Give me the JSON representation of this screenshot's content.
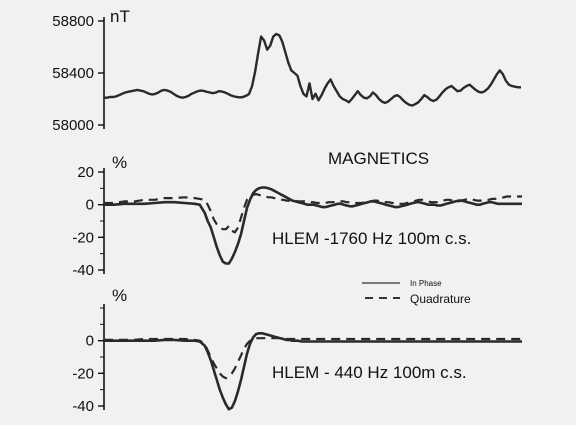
{
  "chart_data": [
    {
      "type": "line",
      "title": "MAGNETICS",
      "ylabel": "nT",
      "ylim": [
        58000,
        58800
      ],
      "yticks": [
        58000,
        58400,
        58800
      ],
      "x": [
        0,
        3,
        6,
        9,
        12,
        15,
        18,
        21,
        24,
        27,
        30,
        33,
        36,
        39,
        42,
        45,
        48,
        51,
        54,
        57,
        60,
        63,
        66,
        69,
        72,
        75,
        78,
        81,
        84,
        87,
        90,
        93,
        96,
        99,
        102,
        105,
        108,
        111,
        114,
        117,
        120,
        123,
        126,
        129,
        132,
        135,
        138,
        141,
        144,
        147,
        150,
        153,
        156,
        159,
        162,
        165,
        168,
        171,
        174,
        177,
        180,
        183,
        186,
        189,
        192,
        195,
        198,
        201,
        204,
        207,
        210,
        213,
        216,
        219,
        222,
        225,
        228,
        231,
        234,
        237,
        240,
        243,
        246,
        249,
        252,
        255,
        258,
        261,
        264,
        267,
        270,
        273,
        276,
        279,
        282,
        285,
        288,
        291,
        294,
        297,
        300,
        303,
        306,
        309,
        312,
        315,
        318,
        321,
        324,
        327,
        330,
        333,
        336,
        339,
        342,
        345,
        348,
        351,
        354,
        357,
        360,
        363,
        366,
        369,
        372,
        375,
        378,
        381,
        384,
        387,
        390,
        393,
        396,
        399,
        402,
        405,
        408,
        411,
        414
      ],
      "series": [
        {
          "values": [
            58210,
            58210,
            58215,
            58215,
            58220,
            58230,
            58240,
            58250,
            58255,
            58260,
            58265,
            58270,
            58265,
            58260,
            58250,
            58240,
            58235,
            58240,
            58250,
            58265,
            58270,
            58265,
            58255,
            58240,
            58225,
            58215,
            58210,
            58215,
            58225,
            58240,
            58250,
            58260,
            58265,
            58262,
            58255,
            58250,
            58245,
            58250,
            58260,
            58258,
            58250,
            58240,
            58228,
            58220,
            58215,
            58212,
            58215,
            58225,
            58238,
            58300,
            58410,
            58550,
            58680,
            58650,
            58580,
            58610,
            58680,
            58700,
            58690,
            58640,
            58560,
            58480,
            58420,
            58400,
            58380,
            58300,
            58240,
            58220,
            58320,
            58200,
            58240,
            58190,
            58230,
            58280,
            58320,
            58350,
            58300,
            58260,
            58220,
            58200,
            58190,
            58175,
            58200,
            58230,
            58260,
            58230,
            58210,
            58205,
            58220,
            58250,
            58230,
            58200,
            58180,
            58170,
            58180,
            58200,
            58220,
            58230,
            58215,
            58190,
            58170,
            58155,
            58150,
            58160,
            58175,
            58200,
            58230,
            58215,
            58195,
            58185,
            58195,
            58220,
            58250,
            58275,
            58290,
            58300,
            58280,
            58260,
            58265,
            58285,
            58300,
            58310,
            58290,
            58270,
            58255,
            58250,
            58260,
            58280,
            58310,
            58350,
            58390,
            58420,
            58390,
            58340,
            58310,
            58300,
            58295,
            58290,
            58290
          ]
        }
      ]
    },
    {
      "type": "line",
      "title": "HLEM -1760 Hz 100m c.s.",
      "ylabel": "%",
      "ylim": [
        -40,
        20
      ],
      "yticks": [
        -40,
        -20,
        0,
        20
      ],
      "x": [
        0,
        10,
        20,
        30,
        40,
        50,
        60,
        70,
        80,
        90,
        95,
        100,
        103,
        106,
        109,
        112,
        115,
        118,
        121,
        124,
        127,
        130,
        133,
        136,
        139,
        142,
        145,
        148,
        151,
        154,
        157,
        160,
        163,
        166,
        169,
        172,
        175,
        178,
        181,
        184,
        187,
        190,
        193,
        196,
        199,
        202,
        205,
        208,
        211,
        214,
        217,
        220,
        223,
        226,
        229,
        232,
        235,
        238,
        241,
        244,
        247,
        250,
        253,
        256,
        259,
        262,
        265,
        268,
        271,
        274,
        277,
        280,
        283,
        286,
        289,
        292,
        295,
        298,
        301,
        304,
        307,
        310,
        313,
        316,
        319,
        322,
        325,
        328,
        331,
        334,
        337,
        340,
        343,
        346,
        349,
        352,
        355,
        358,
        361,
        364,
        367,
        370,
        373,
        376,
        379,
        382,
        385,
        388,
        391,
        394,
        397,
        400,
        403,
        406,
        409,
        412,
        415
      ],
      "series": [
        {
          "name": "In Phase",
          "values": [
            0,
            0,
            0.5,
            0.5,
            0.5,
            1,
            1.5,
            1.5,
            1,
            0.5,
            0,
            -5,
            -10,
            -14,
            -20,
            -26,
            -31,
            -35,
            -36,
            -36,
            -33,
            -29,
            -24,
            -18,
            -10,
            -2,
            3,
            7,
            9,
            10,
            10.5,
            10.5,
            10,
            9.5,
            8.5,
            7.5,
            6.5,
            5.5,
            4.5,
            3.5,
            2.5,
            2,
            1.5,
            1,
            0.5,
            0,
            0,
            0,
            -0.5,
            -1,
            -1.5,
            -1.5,
            -1,
            -0.5,
            0,
            0.5,
            0.5,
            0,
            -0.5,
            -1,
            -1,
            -0.5,
            0,
            0.5,
            1,
            1.5,
            2,
            2,
            1.5,
            1,
            0.5,
            0,
            -0.5,
            -1,
            -1.5,
            -1.5,
            -1,
            -0.5,
            0,
            0.5,
            1,
            1.5,
            1.5,
            1,
            0.5,
            0,
            0,
            0,
            -0.5,
            -0.5,
            0,
            0.5,
            1,
            1.5,
            2,
            2.5,
            2.5,
            2,
            1.5,
            1,
            0.5,
            0,
            0,
            0.5,
            1,
            1.5,
            1.5,
            1,
            0.5,
            0.5,
            0.5,
            0.5,
            0.5,
            0.5,
            0.5,
            0.5,
            0.5
          ]
        },
        {
          "name": "Quadrature",
          "values": [
            1,
            1,
            2,
            2,
            3,
            3,
            4,
            4,
            4.5,
            4,
            3.5,
            3,
            0,
            -4,
            -9,
            -12,
            -14,
            -15,
            -15,
            -13,
            -16,
            -17,
            -14,
            -8,
            -2,
            3,
            5,
            6,
            6.5,
            6,
            5.5,
            5,
            4.5,
            4.5,
            4,
            3.5,
            3,
            3,
            2.5,
            2.5,
            2.5,
            2.5,
            2,
            2,
            2,
            1.5,
            1.5,
            1.5,
            1,
            1,
            1,
            1,
            1.5,
            1.5,
            1.5,
            2,
            2,
            2,
            1.5,
            1.5,
            1,
            1,
            1,
            1,
            1.5,
            2,
            2,
            2.5,
            2.5,
            2,
            2,
            1.5,
            1.5,
            1,
            1,
            0.5,
            0.5,
            0.5,
            1,
            1.5,
            2,
            2.5,
            3,
            3,
            2.5,
            2,
            1.5,
            1.5,
            1.5,
            2,
            2.5,
            3,
            3,
            2.5,
            2,
            2,
            2.5,
            3,
            3.5,
            3.5,
            3,
            2.5,
            2.5,
            2.5,
            3,
            3,
            3.5,
            3.5,
            4,
            4,
            4.5,
            5,
            5,
            5,
            5,
            5,
            5
          ]
        }
      ]
    },
    {
      "type": "line",
      "title": "HLEM - 440 Hz 100m c.s.",
      "ylabel": "%",
      "ylim": [
        -40,
        20
      ],
      "yticks": [
        -40,
        -20,
        0
      ],
      "x": [
        0,
        10,
        20,
        30,
        40,
        50,
        60,
        70,
        80,
        90,
        95,
        100,
        103,
        106,
        109,
        112,
        115,
        118,
        121,
        124,
        127,
        130,
        133,
        136,
        139,
        142,
        145,
        148,
        151,
        154,
        157,
        160,
        163,
        166,
        169,
        172,
        175,
        178,
        181,
        184,
        187,
        190,
        193,
        196,
        199,
        202,
        205,
        208,
        211,
        214,
        217,
        220,
        223,
        226,
        229,
        232,
        235,
        238,
        241,
        244,
        247,
        250,
        253,
        256,
        259,
        262,
        265,
        268,
        271,
        274,
        277,
        280,
        283,
        286,
        289,
        292,
        295,
        298,
        301,
        304,
        307,
        310,
        313,
        316,
        319,
        322,
        325,
        328,
        331,
        334,
        337,
        340,
        343,
        346,
        349,
        352,
        355,
        358,
        361,
        364,
        367,
        370,
        373,
        376,
        379,
        382,
        385,
        388,
        391,
        394,
        397,
        400,
        403,
        406,
        409,
        412,
        415
      ],
      "series": [
        {
          "name": "In Phase",
          "values": [
            0,
            0,
            0,
            0,
            0,
            0,
            0.5,
            0.5,
            0,
            0,
            -0.5,
            -3,
            -7,
            -12,
            -18,
            -24,
            -30,
            -35,
            -39,
            -42,
            -41,
            -37,
            -31,
            -24,
            -16,
            -8,
            -2,
            2,
            4,
            4.5,
            4.5,
            4,
            3.5,
            3,
            2.5,
            2,
            1.5,
            1,
            0.5,
            0.5,
            0,
            0,
            0,
            -0.5,
            -0.5,
            -0.5,
            -0.5,
            -0.5,
            -0.5,
            -0.5,
            -0.5,
            -0.5,
            -0.5,
            -0.5,
            -0.5,
            -0.5,
            -0.5,
            -0.5,
            -0.5,
            -0.5,
            -0.5,
            -0.5,
            -0.5,
            -0.5,
            -0.5,
            -0.5,
            -0.5,
            -0.5,
            -0.5,
            -0.5,
            -0.5,
            -0.5,
            -0.5,
            -0.5,
            -0.5,
            -0.5,
            -0.5,
            -0.5,
            -0.5,
            -0.5,
            -0.5,
            -0.5,
            -0.5,
            -0.5,
            -0.5,
            -0.5,
            -0.5,
            -0.5,
            -0.5,
            -0.5,
            -0.5,
            -0.5,
            -0.5,
            -0.5,
            -0.5,
            -0.5,
            -0.5,
            -0.5,
            -0.5,
            -0.5,
            -0.5,
            -0.5,
            -0.5,
            -0.5,
            -0.5,
            -0.5,
            -0.5,
            -0.5,
            -0.5,
            -0.5,
            -0.5,
            -0.5,
            -0.5,
            -0.5,
            -0.5,
            -0.5,
            -0.5
          ]
        },
        {
          "name": "Quadrature",
          "values": [
            0.5,
            0.5,
            0.5,
            0.5,
            1,
            1,
            1,
            1,
            1,
            0.5,
            0,
            -2,
            -6,
            -10,
            -14,
            -17,
            -20,
            -22,
            -23,
            -22,
            -20,
            -17,
            -13,
            -9,
            -5,
            -2,
            0,
            1,
            1.5,
            1.5,
            1.5,
            1.5,
            1.5,
            1.5,
            1.5,
            1.5,
            1.5,
            1,
            1,
            1,
            1,
            1,
            1,
            1,
            1,
            1,
            1,
            1,
            1,
            1,
            1,
            1,
            1,
            1,
            1,
            1,
            1,
            1,
            1,
            1,
            1,
            1,
            1,
            1,
            1,
            1,
            1,
            1,
            1,
            1,
            1,
            1,
            1,
            1,
            1,
            1,
            1,
            1,
            1,
            1,
            1,
            1,
            1,
            1,
            1,
            1,
            1,
            1,
            1,
            1,
            1,
            1,
            1,
            1,
            1,
            1,
            1,
            1,
            1,
            1,
            1,
            1,
            1,
            1,
            1,
            1,
            1,
            1,
            1,
            1,
            1,
            1,
            1,
            1,
            1,
            1,
            1
          ]
        }
      ]
    }
  ],
  "legend": {
    "in_phase": "In Phase",
    "quadrature": "Quadrature"
  }
}
